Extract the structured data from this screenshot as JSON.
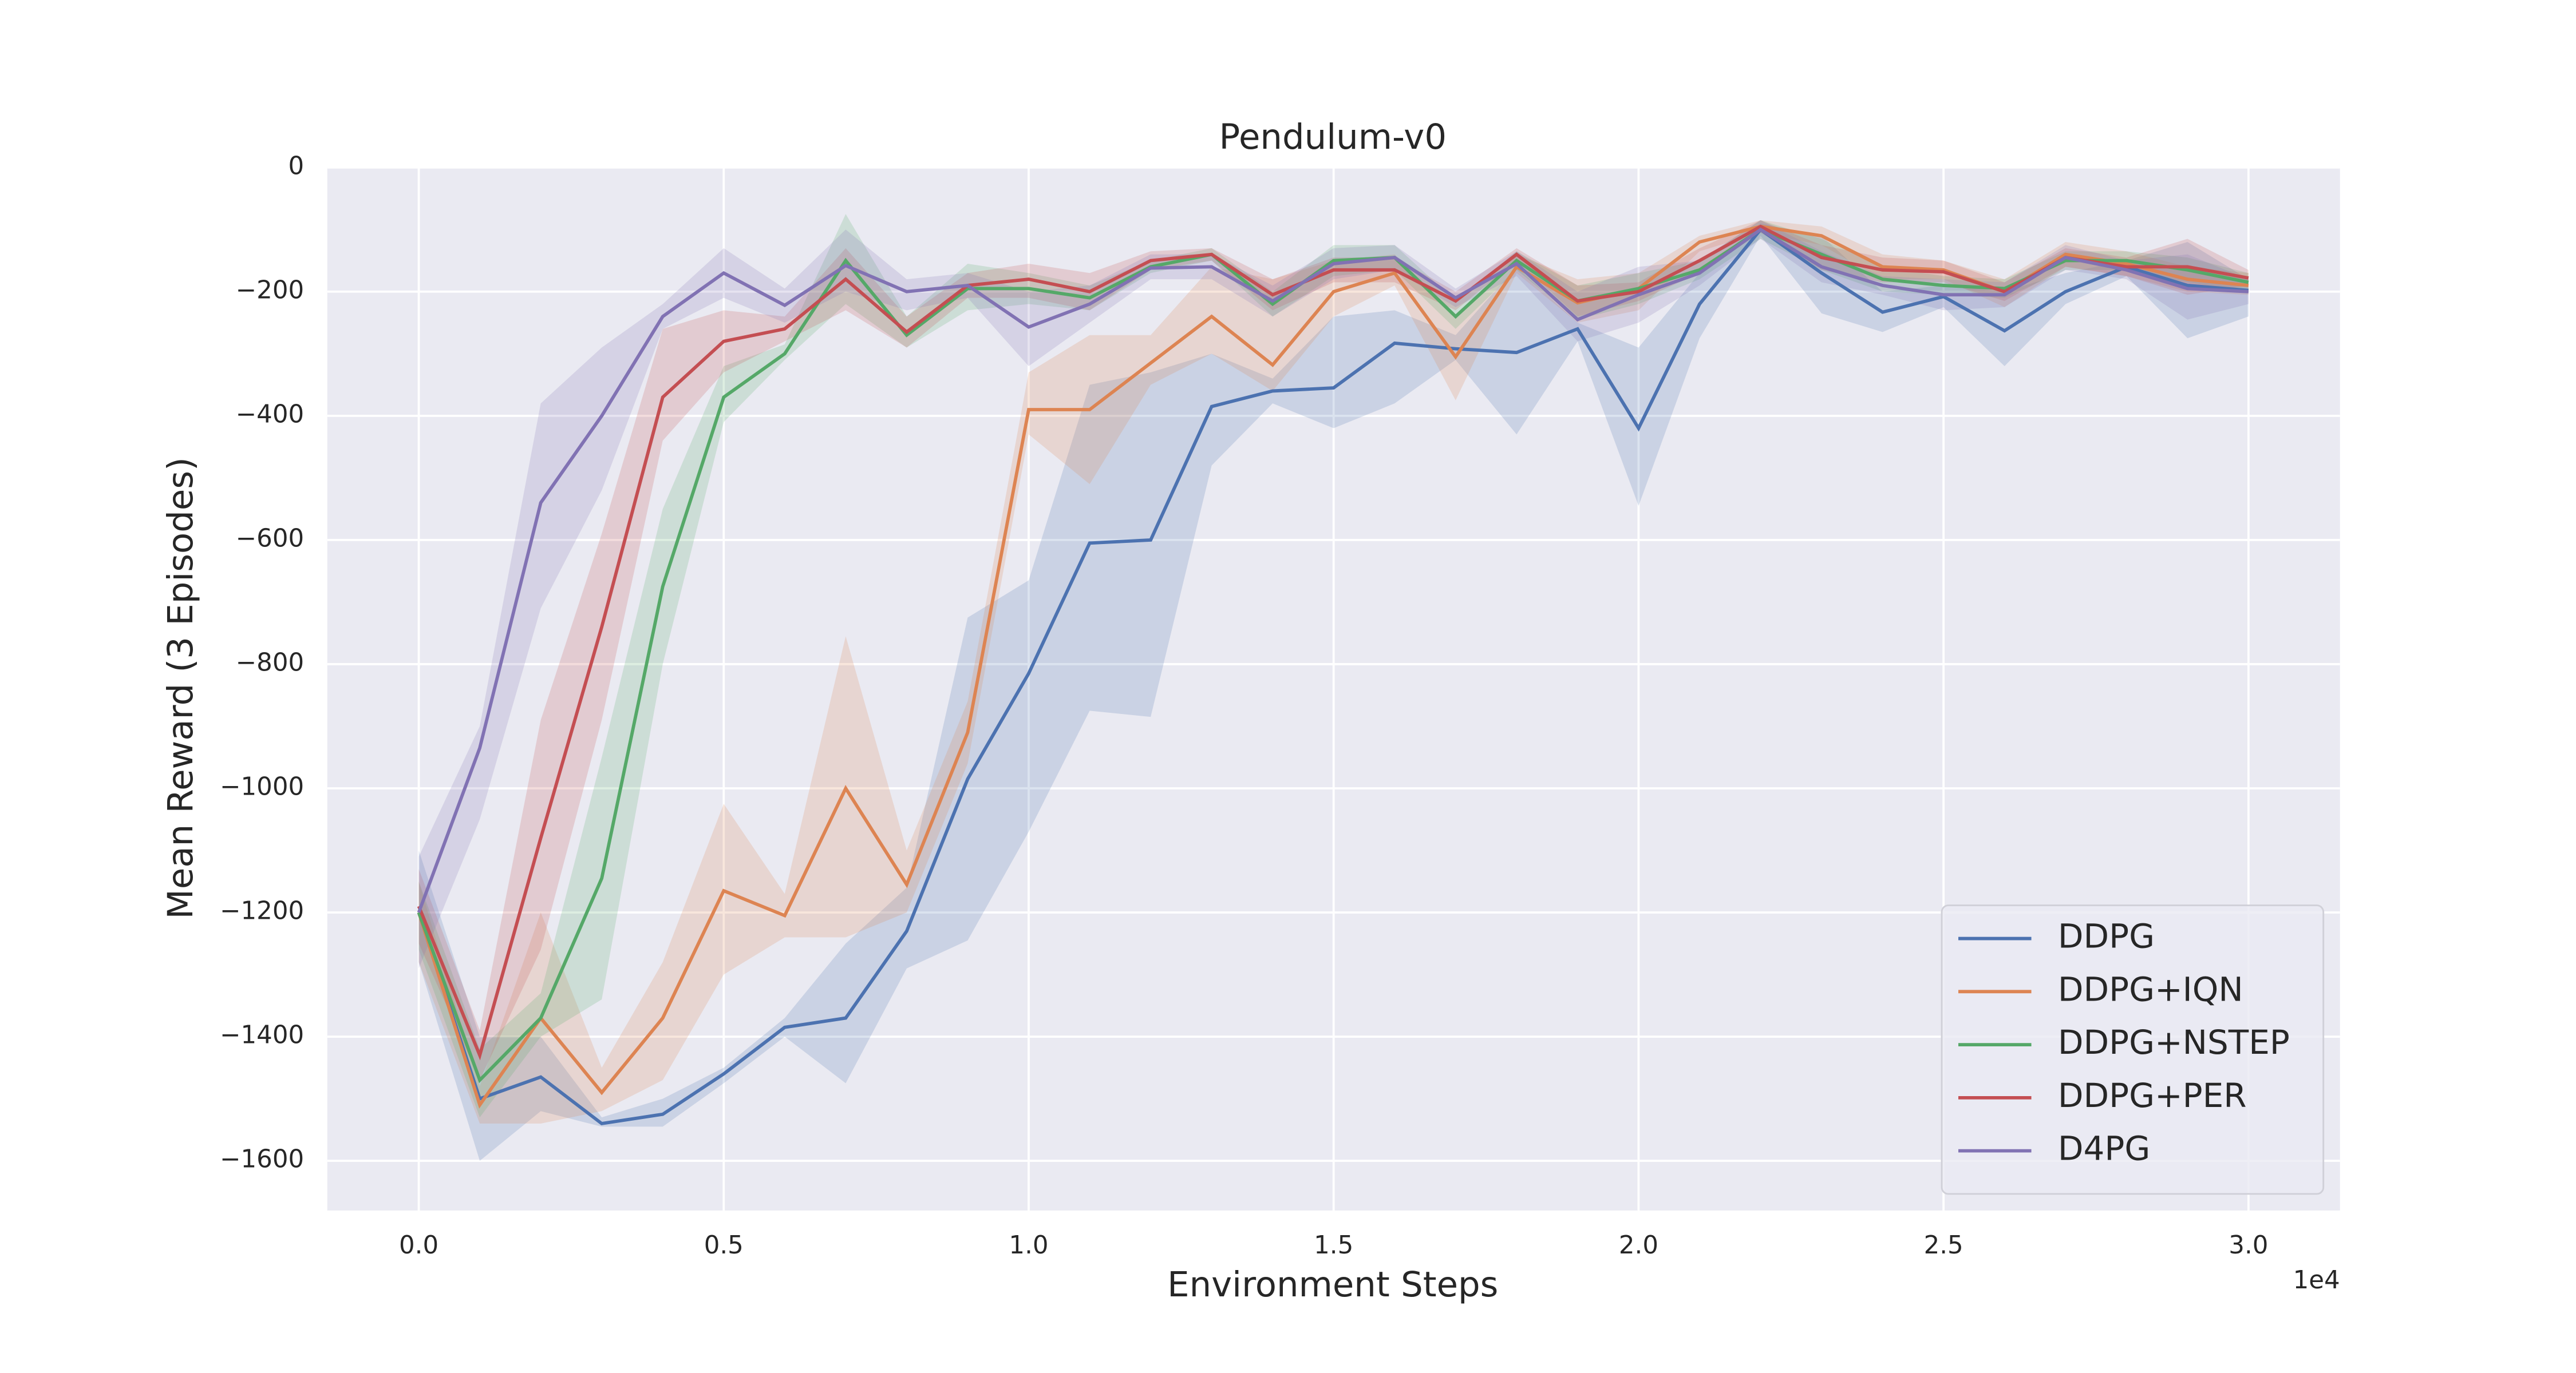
{
  "chart_data": {
    "type": "line",
    "title": "Pendulum-v0",
    "x_label": "Environment Steps",
    "y_label": "Mean Reward (3 Episodes)",
    "x_offset_label": "1e4",
    "x": [
      0,
      1000,
      2000,
      3000,
      4000,
      5000,
      6000,
      7000,
      8000,
      9000,
      10000,
      11000,
      12000,
      13000,
      14000,
      15000,
      16000,
      17000,
      18000,
      19000,
      20000,
      21000,
      22000,
      23000,
      24000,
      25000,
      26000,
      27000,
      28000,
      29000,
      30000
    ],
    "xlim": [
      -1500,
      31500
    ],
    "xticks": [
      {
        "value": 0,
        "label": "0.0"
      },
      {
        "value": 5000,
        "label": "0.5"
      },
      {
        "value": 10000,
        "label": "1.0"
      },
      {
        "value": 15000,
        "label": "1.5"
      },
      {
        "value": 20000,
        "label": "2.0"
      },
      {
        "value": 25000,
        "label": "2.5"
      },
      {
        "value": 30000,
        "label": "3.0"
      }
    ],
    "ylim": [
      -1680,
      0
    ],
    "yticks": [
      0,
      {
        "value": -200,
        "label": "−200"
      },
      {
        "value": -400,
        "label": "−400"
      },
      {
        "value": -600,
        "label": "−600"
      },
      {
        "value": -800,
        "label": "−800"
      },
      {
        "value": -1000,
        "label": "−1000"
      },
      {
        "value": -1200,
        "label": "−1200"
      },
      {
        "value": -1400,
        "label": "−1400"
      },
      {
        "value": -1600,
        "label": "−1600"
      }
    ],
    "grid": true,
    "legend": "lower right",
    "series": [
      {
        "name": "DDPG",
        "color": "#4c72b0",
        "values": [
          -1200,
          -1500,
          -1465,
          -1540,
          -1525,
          -1460,
          -1385,
          -1370,
          -1230,
          -985,
          -815,
          -605,
          -600,
          -385,
          -360,
          -355,
          -283,
          -292,
          -298,
          -260,
          -420,
          -220,
          -100,
          -170,
          -233,
          -208,
          -263,
          -200,
          -160,
          -190,
          -198
        ],
        "upper": [
          -1100,
          -1400,
          -1400,
          -1530,
          -1500,
          -1450,
          -1370,
          -1250,
          -1160,
          -725,
          -665,
          -350,
          -330,
          -300,
          -340,
          -240,
          -230,
          -270,
          -160,
          -250,
          -290,
          -170,
          -90,
          -110,
          -200,
          -190,
          -200,
          -170,
          -150,
          -120,
          -180
        ],
        "lower": [
          -1280,
          -1600,
          -1520,
          -1545,
          -1545,
          -1475,
          -1400,
          -1475,
          -1290,
          -1245,
          -1070,
          -875,
          -885,
          -480,
          -380,
          -420,
          -380,
          -310,
          -430,
          -280,
          -545,
          -275,
          -110,
          -235,
          -265,
          -225,
          -320,
          -220,
          -175,
          -275,
          -240
        ]
      },
      {
        "name": "DDPG+IQN",
        "color": "#dd8452",
        "values": [
          -1200,
          -1510,
          -1370,
          -1490,
          -1370,
          -1165,
          -1205,
          -1000,
          -1155,
          -910,
          -390,
          -390,
          -315,
          -240,
          -318,
          -200,
          -170,
          -305,
          -160,
          -218,
          -195,
          -120,
          -95,
          -110,
          -160,
          -165,
          -200,
          -140,
          -155,
          -180,
          -190
        ],
        "upper": [
          -1150,
          -1480,
          -1200,
          -1450,
          -1280,
          -1025,
          -1170,
          -755,
          -1100,
          -860,
          -330,
          -270,
          -270,
          -160,
          -180,
          -150,
          -140,
          -240,
          -140,
          -180,
          -170,
          -110,
          -85,
          -95,
          -140,
          -150,
          -180,
          -120,
          -135,
          -160,
          -170
        ],
        "lower": [
          -1280,
          -1540,
          -1540,
          -1520,
          -1470,
          -1300,
          -1240,
          -1240,
          -1200,
          -960,
          -430,
          -510,
          -350,
          -300,
          -360,
          -240,
          -190,
          -375,
          -170,
          -250,
          -230,
          -135,
          -105,
          -125,
          -180,
          -180,
          -225,
          -160,
          -175,
          -200,
          -205
        ]
      },
      {
        "name": "DDPG+NSTEP",
        "color": "#55a868",
        "values": [
          -1200,
          -1470,
          -1370,
          -1145,
          -675,
          -370,
          -300,
          -150,
          -270,
          -195,
          -195,
          -210,
          -160,
          -140,
          -220,
          -150,
          -145,
          -240,
          -150,
          -215,
          -195,
          -165,
          -100,
          -140,
          -180,
          -190,
          -195,
          -150,
          -150,
          -165,
          -185
        ],
        "upper": [
          -1150,
          -1420,
          -1330,
          -950,
          -550,
          -320,
          -285,
          -75,
          -240,
          -155,
          -170,
          -190,
          -150,
          -130,
          -200,
          -125,
          -125,
          -215,
          -135,
          -190,
          -170,
          -150,
          -85,
          -115,
          -160,
          -175,
          -180,
          -135,
          -135,
          -145,
          -170
        ],
        "lower": [
          -1260,
          -1530,
          -1400,
          -1340,
          -800,
          -410,
          -310,
          -220,
          -290,
          -230,
          -220,
          -230,
          -170,
          -150,
          -240,
          -175,
          -165,
          -260,
          -165,
          -245,
          -220,
          -180,
          -115,
          -165,
          -200,
          -205,
          -210,
          -165,
          -165,
          -185,
          -200
        ]
      },
      {
        "name": "DDPG+PER",
        "color": "#c44e52",
        "values": [
          -1190,
          -1430,
          -1080,
          -740,
          -370,
          -280,
          -260,
          -180,
          -265,
          -190,
          -180,
          -200,
          -150,
          -140,
          -205,
          -165,
          -165,
          -215,
          -140,
          -215,
          -200,
          -150,
          -95,
          -145,
          -165,
          -168,
          -200,
          -145,
          -160,
          -160,
          -178
        ],
        "upper": [
          -1130,
          -1390,
          -890,
          -590,
          -260,
          -230,
          -240,
          -130,
          -240,
          -170,
          -155,
          -170,
          -135,
          -130,
          -180,
          -145,
          -145,
          -200,
          -130,
          -190,
          -185,
          -130,
          -85,
          -125,
          -145,
          -150,
          -185,
          -130,
          -145,
          -115,
          -165
        ],
        "lower": [
          -1250,
          -1470,
          -1260,
          -890,
          -440,
          -330,
          -280,
          -230,
          -290,
          -210,
          -210,
          -230,
          -165,
          -150,
          -230,
          -185,
          -185,
          -230,
          -150,
          -240,
          -215,
          -170,
          -105,
          -165,
          -185,
          -185,
          -215,
          -160,
          -175,
          -205,
          -190
        ]
      },
      {
        "name": "D4PG",
        "color": "#8172b3",
        "values": [
          -1200,
          -935,
          -540,
          -400,
          -240,
          -170,
          -222,
          -158,
          -200,
          -190,
          -257,
          -220,
          -162,
          -160,
          -215,
          -155,
          -145,
          -210,
          -155,
          -245,
          -205,
          -170,
          -100,
          -160,
          -190,
          -205,
          -205,
          -145,
          -165,
          -195,
          -200
        ],
        "upper": [
          -1110,
          -900,
          -380,
          -290,
          -220,
          -130,
          -195,
          -100,
          -180,
          -170,
          -200,
          -190,
          -140,
          -140,
          -190,
          -130,
          -125,
          -195,
          -135,
          -200,
          -160,
          -150,
          -85,
          -135,
          -175,
          -180,
          -185,
          -125,
          -150,
          -140,
          -180
        ],
        "lower": [
          -1290,
          -1050,
          -710,
          -520,
          -260,
          -210,
          -250,
          -200,
          -230,
          -210,
          -320,
          -250,
          -180,
          -180,
          -240,
          -180,
          -165,
          -225,
          -175,
          -280,
          -250,
          -190,
          -115,
          -185,
          -205,
          -230,
          -225,
          -165,
          -180,
          -245,
          -220
        ]
      }
    ]
  }
}
